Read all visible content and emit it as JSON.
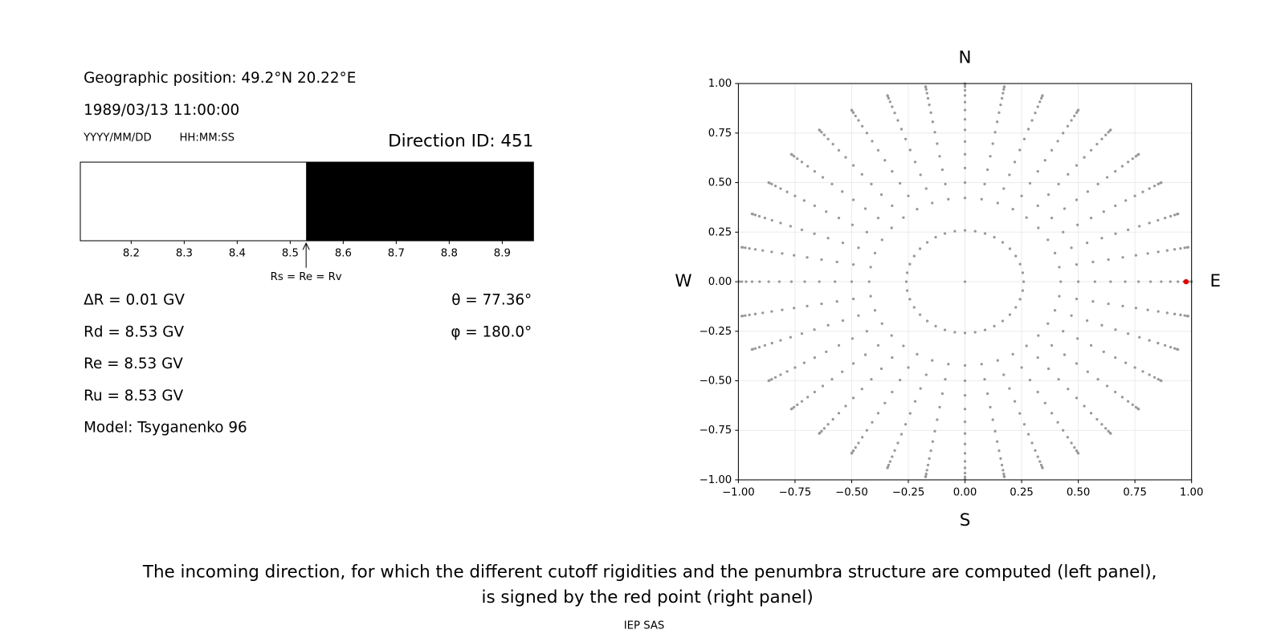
{
  "header": {
    "position": "Geographic position: 49.2°N 20.22°E",
    "datetime": "1989/03/13 11:00:00",
    "date_format": "YYYY/MM/DD",
    "time_format": "HH:MM:SS",
    "direction_id": "Direction ID: 451"
  },
  "results": [
    "ΔR = 0.01 GV",
    "Rd = 8.53 GV",
    "Re = 8.53 GV",
    "Ru = 8.53 GV",
    "Model: Tsyganenko 96"
  ],
  "angles": [
    "θ = 77.36°",
    "φ = 180.0°"
  ],
  "chart_data": [
    {
      "type": "penumbra",
      "xlim": [
        8.104,
        8.959
      ],
      "xticks": [
        8.2,
        8.3,
        8.4,
        8.5,
        8.6,
        8.7,
        8.8,
        8.9
      ],
      "bands": [
        {
          "start": 8.104,
          "end": 8.53,
          "color": "#ffffff"
        },
        {
          "start": 8.53,
          "end": 8.959,
          "color": "#000000"
        }
      ],
      "annotation": {
        "text": "Rs = Re = Rv",
        "x": 8.53
      }
    },
    {
      "type": "sky-scatter",
      "zenith": [
        0,
        15,
        25,
        30,
        35,
        40,
        45,
        50,
        55,
        60,
        65,
        70,
        75,
        80,
        85,
        90
      ],
      "azimuth": [
        0,
        10,
        20,
        30,
        40,
        50,
        60,
        70,
        80,
        90,
        100,
        110,
        120,
        130,
        140,
        150,
        160,
        170,
        180,
        190,
        200,
        210,
        220,
        230,
        240,
        250,
        260,
        270,
        280,
        290,
        300,
        310,
        320,
        330,
        340,
        350
      ],
      "color": "#999999",
      "selected": {
        "theta": 77.36,
        "phi": 180.0,
        "color": "#e00000"
      },
      "xlim": [
        -1,
        1
      ],
      "ylim": [
        -1,
        1
      ],
      "xticks": [
        {
          "value": -1,
          "label": "−1.00"
        },
        {
          "value": -0.75,
          "label": "−0.75"
        },
        {
          "value": -0.5,
          "label": "−0.50"
        },
        {
          "value": -0.25,
          "label": "−0.25"
        },
        {
          "value": 0,
          "label": "0.00"
        },
        {
          "value": 0.25,
          "label": "0.25"
        },
        {
          "value": 0.5,
          "label": "0.50"
        },
        {
          "value": 0.75,
          "label": "0.75"
        },
        {
          "value": 1,
          "label": "1.00"
        }
      ],
      "yticks": [
        {
          "value": -1,
          "label": "−1.00"
        },
        {
          "value": -0.75,
          "label": "−0.75"
        },
        {
          "value": -0.5,
          "label": "−0.50"
        },
        {
          "value": -0.25,
          "label": "−0.25"
        },
        {
          "value": 0,
          "label": "0.00"
        },
        {
          "value": 0.25,
          "label": "0.25"
        },
        {
          "value": 0.5,
          "label": "0.50"
        },
        {
          "value": 0.75,
          "label": "0.75"
        },
        {
          "value": 1,
          "label": "1.00"
        }
      ],
      "grid": true,
      "compass": [
        "N",
        "S",
        "W",
        "E"
      ]
    }
  ],
  "caption": [
    "The incoming direction, for which the different cutoff rigidities and the penumbra structure are computed (left panel),",
    "is signed by the red point (right panel)"
  ],
  "footer": "IEP SAS"
}
